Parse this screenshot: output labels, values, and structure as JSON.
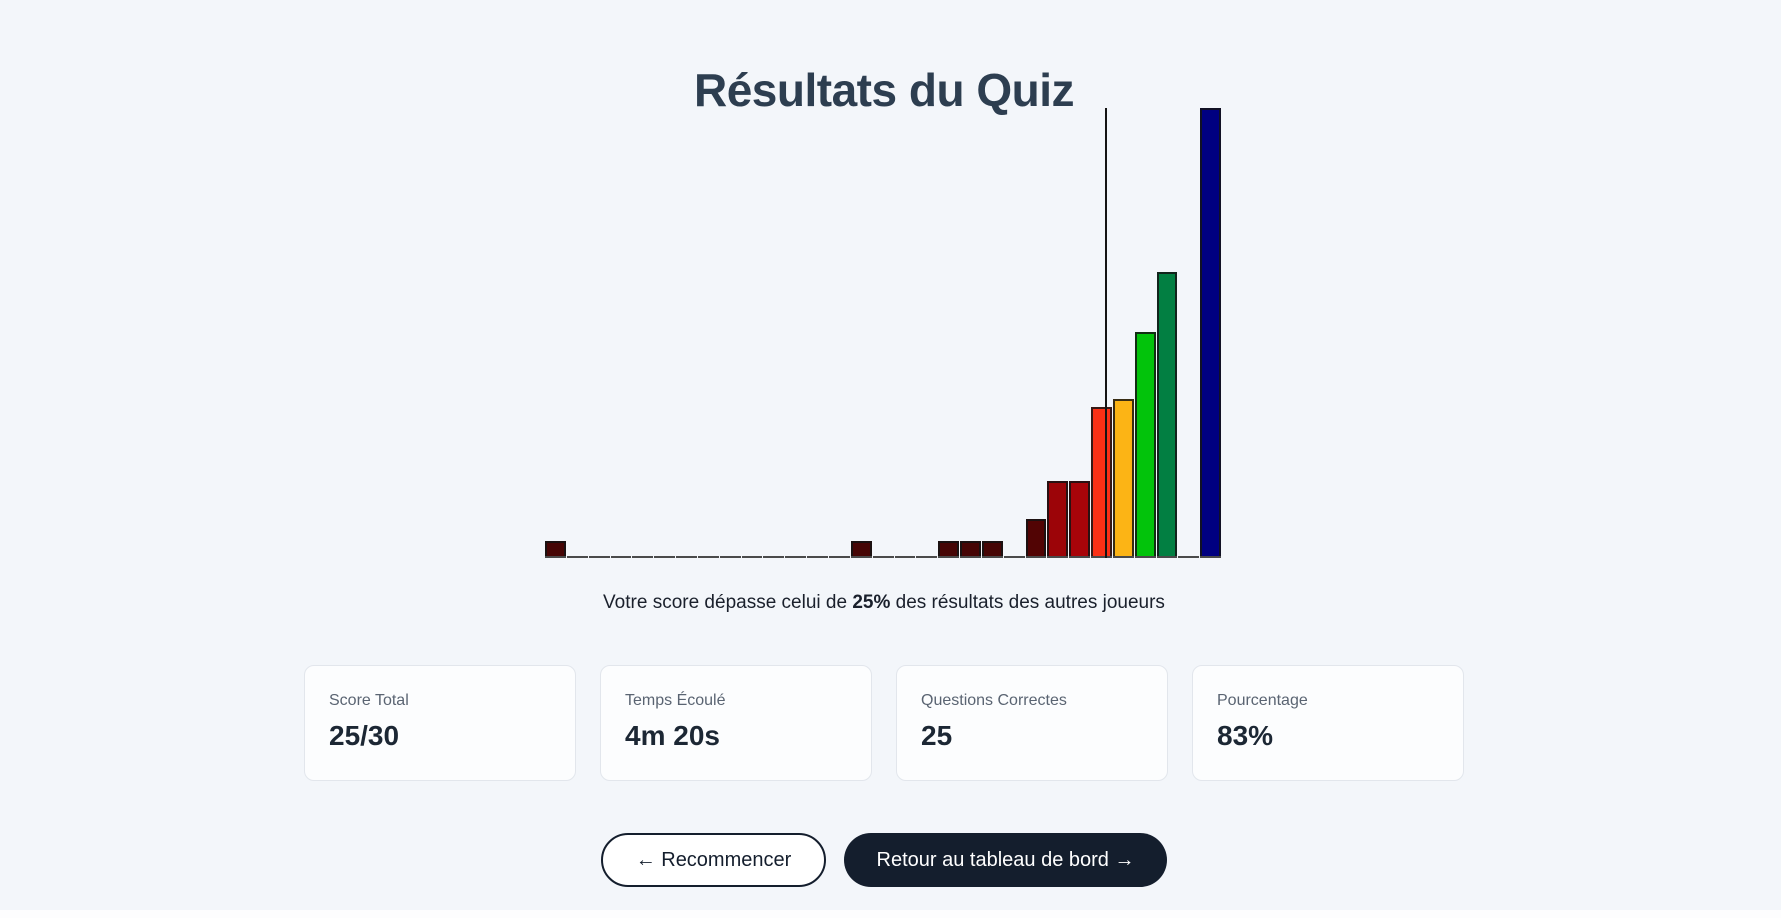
{
  "header": {
    "title": "Résultats du Quiz"
  },
  "chart_data": {
    "type": "bar",
    "subtype": "histogram",
    "title": "",
    "xlabel": "",
    "ylabel": "",
    "legend": false,
    "grid": false,
    "axis_labels_visible": false,
    "categories": [
      0,
      1,
      2,
      3,
      4,
      5,
      6,
      7,
      8,
      9,
      10,
      11,
      12,
      13,
      14,
      15,
      16,
      17,
      18,
      19,
      20,
      21,
      22,
      23,
      24,
      25,
      26,
      27,
      28,
      29,
      30
    ],
    "values": [
      1,
      0,
      0,
      0,
      0,
      0,
      0,
      0,
      0,
      0,
      0,
      0,
      0,
      0,
      1,
      0,
      0,
      0,
      1,
      1,
      1,
      0,
      2.5,
      5,
      5,
      10,
      10.5,
      15,
      19,
      0,
      30
    ],
    "y_max": 30,
    "bar_colors": [
      "#460505",
      "",
      "",
      "",
      "",
      "",
      "",
      "",
      "",
      "",
      "",
      "",
      "",
      "",
      "#460505",
      "",
      "",
      "",
      "#460505",
      "#460505",
      "#460505",
      "",
      "#520404",
      "#9c0408",
      "#a80409",
      "#fa3015",
      "#fcb415",
      "#02c30b",
      "#027f42",
      "",
      "#000080"
    ],
    "baseline_color": "#4a4a4a",
    "bar_outline_color": "rgba(20,20,20,0.85)",
    "score_marker": {
      "score": 25,
      "x_fraction": 0.8284,
      "color": "#141414"
    }
  },
  "percentile": {
    "prefix": "Votre score dépasse celui de ",
    "value": "25%",
    "suffix": " des résultats des autres joueurs"
  },
  "stats": {
    "cards": [
      {
        "label": "Score Total",
        "value": "25/30"
      },
      {
        "label": "Temps Écoulé",
        "value": "4m 20s"
      },
      {
        "label": "Questions Correctes",
        "value": "25"
      },
      {
        "label": "Pourcentage",
        "value": "83%"
      }
    ]
  },
  "actions": {
    "restart_label": "← Recommencer",
    "dashboard_label": "Retour au tableau de bord →"
  },
  "theme": {
    "background": "#f3f6fa",
    "title_color": "#2d3e50",
    "accent_dark": "#141e2d",
    "card_background": "#fcfdfe",
    "card_border": "#e2e6ec"
  }
}
